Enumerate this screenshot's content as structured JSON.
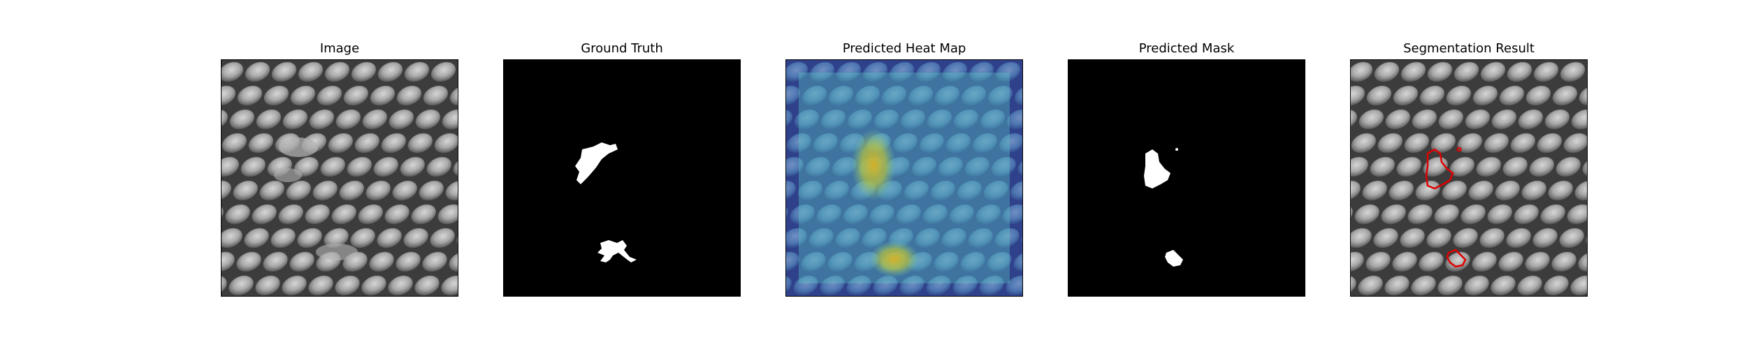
{
  "figure": {
    "panels": [
      {
        "id": "image",
        "title": "Image",
        "content": "grayscale-texture"
      },
      {
        "id": "ground-truth",
        "title": "Ground Truth",
        "content": "binary-mask",
        "background": "#000000",
        "foreground": "#ffffff"
      },
      {
        "id": "heat-map",
        "title": "Predicted Heat Map",
        "content": "heat-map-overlay"
      },
      {
        "id": "predicted-mask",
        "title": "Predicted Mask",
        "content": "binary-mask",
        "background": "#000000",
        "foreground": "#ffffff"
      },
      {
        "id": "segmentation",
        "title": "Segmentation Result",
        "content": "texture-with-contours",
        "contour_color": "#e00000"
      }
    ]
  }
}
